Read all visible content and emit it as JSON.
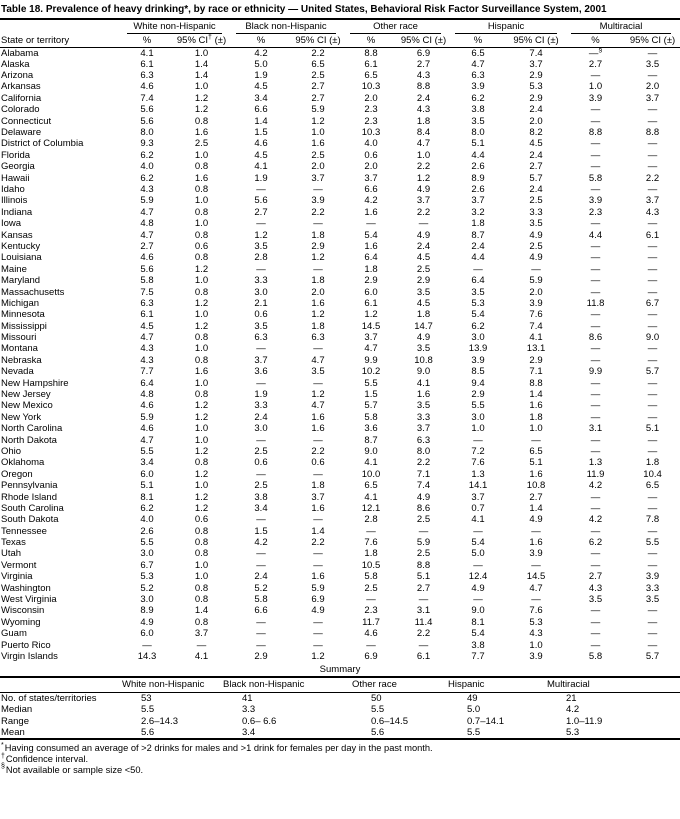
{
  "title": "Table 18. Prevalence of heavy drinking*, by race or ethnicity — United States, Behavioral Risk Factor Surveillance System, 2001",
  "table": {
    "state_col": "State or territory",
    "groups": [
      "White non-Hispanic",
      "Black non-Hispanic",
      "Other race",
      "Hispanic",
      "Multiracial"
    ],
    "pct_label": "%",
    "ci_label": "95% CI (±)",
    "ci_first": {
      "pre": "95% CI",
      "sup": "†",
      "post": " (±)"
    },
    "rows": [
      [
        "Alabama",
        "4.1",
        "1.0",
        "4.2",
        "2.2",
        "8.8",
        "6.9",
        "6.5",
        "7.4",
        "—§",
        "—"
      ],
      [
        "Alaska",
        "6.1",
        "1.4",
        "5.0",
        "6.5",
        "6.1",
        "2.7",
        "4.7",
        "3.7",
        "2.7",
        "3.5"
      ],
      [
        "Arizona",
        "6.3",
        "1.4",
        "1.9",
        "2.5",
        "6.5",
        "4.3",
        "6.3",
        "2.9",
        "—",
        "—"
      ],
      [
        "Arkansas",
        "4.6",
        "1.0",
        "4.5",
        "2.7",
        "10.3",
        "8.8",
        "3.9",
        "5.3",
        "1.0",
        "2.0"
      ],
      [
        "California",
        "7.4",
        "1.2",
        "3.4",
        "2.7",
        "2.0",
        "2.4",
        "6.2",
        "2.9",
        "3.9",
        "3.7"
      ],
      [
        "Colorado",
        "5.6",
        "1.2",
        "6.6",
        "5.9",
        "2.3",
        "4.3",
        "3.8",
        "2.4",
        "—",
        "—"
      ],
      [
        "Connecticut",
        "5.6",
        "0.8",
        "1.4",
        "1.2",
        "2.3",
        "1.8",
        "3.5",
        "2.0",
        "—",
        "—"
      ],
      [
        "Delaware",
        "8.0",
        "1.6",
        "1.5",
        "1.0",
        "10.3",
        "8.4",
        "8.0",
        "8.2",
        "8.8",
        "8.8"
      ],
      [
        "District of Columbia",
        "9.3",
        "2.5",
        "4.6",
        "1.6",
        "4.0",
        "4.7",
        "5.1",
        "4.5",
        "—",
        "—"
      ],
      [
        "Florida",
        "6.2",
        "1.0",
        "4.5",
        "2.5",
        "0.6",
        "1.0",
        "4.4",
        "2.4",
        "—",
        "—"
      ],
      [
        "Georgia",
        "4.0",
        "0.8",
        "4.1",
        "2.0",
        "2.0",
        "2.2",
        "2.6",
        "2.7",
        "—",
        "—"
      ],
      [
        "Hawaii",
        "6.2",
        "1.6",
        "1.9",
        "3.7",
        "3.7",
        "1.2",
        "8.9",
        "5.7",
        "5.8",
        "2.2"
      ],
      [
        "Idaho",
        "4.3",
        "0.8",
        "—",
        "—",
        "6.6",
        "4.9",
        "2.6",
        "2.4",
        "—",
        "—"
      ],
      [
        "Illinois",
        "5.9",
        "1.0",
        "5.6",
        "3.9",
        "4.2",
        "3.7",
        "3.7",
        "2.5",
        "3.9",
        "3.7"
      ],
      [
        "Indiana",
        "4.7",
        "0.8",
        "2.7",
        "2.2",
        "1.6",
        "2.2",
        "3.2",
        "3.3",
        "2.3",
        "4.3"
      ],
      [
        "Iowa",
        "4.8",
        "1.0",
        "—",
        "—",
        "—",
        "—",
        "1.8",
        "3.5",
        "—",
        "—"
      ],
      [
        "Kansas",
        "4.7",
        "0.8",
        "1.2",
        "1.8",
        "5.4",
        "4.9",
        "8.7",
        "4.9",
        "4.4",
        "6.1"
      ],
      [
        "Kentucky",
        "2.7",
        "0.6",
        "3.5",
        "2.9",
        "1.6",
        "2.4",
        "2.4",
        "2.5",
        "—",
        "—"
      ],
      [
        "Louisiana",
        "4.6",
        "0.8",
        "2.8",
        "1.2",
        "6.4",
        "4.5",
        "4.4",
        "4.9",
        "—",
        "—"
      ],
      [
        "Maine",
        "5.6",
        "1.2",
        "—",
        "—",
        "1.8",
        "2.5",
        "—",
        "—",
        "—",
        "—"
      ],
      [
        "Maryland",
        "5.8",
        "1.0",
        "3.3",
        "1.8",
        "2.9",
        "2.9",
        "6.4",
        "5.9",
        "—",
        "—"
      ],
      [
        "Massachusetts",
        "7.5",
        "0.8",
        "3.0",
        "2.0",
        "6.0",
        "3.5",
        "3.5",
        "2.0",
        "—",
        "—"
      ],
      [
        "Michigan",
        "6.3",
        "1.2",
        "2.1",
        "1.6",
        "6.1",
        "4.5",
        "5.3",
        "3.9",
        "11.8",
        "6.7"
      ],
      [
        "Minnesota",
        "6.1",
        "1.0",
        "0.6",
        "1.2",
        "1.2",
        "1.8",
        "5.4",
        "7.6",
        "—",
        "—"
      ],
      [
        "Mississippi",
        "4.5",
        "1.2",
        "3.5",
        "1.8",
        "14.5",
        "14.7",
        "6.2",
        "7.4",
        "—",
        "—"
      ],
      [
        "Missouri",
        "4.7",
        "0.8",
        "6.3",
        "6.3",
        "3.7",
        "4.9",
        "3.0",
        "4.1",
        "8.6",
        "9.0"
      ],
      [
        "Montana",
        "4.3",
        "1.0",
        "—",
        "—",
        "4.7",
        "3.5",
        "13.9",
        "13.1",
        "—",
        "—"
      ],
      [
        "Nebraska",
        "4.3",
        "0.8",
        "3.7",
        "4.7",
        "9.9",
        "10.8",
        "3.9",
        "2.9",
        "—",
        "—"
      ],
      [
        "Nevada",
        "7.7",
        "1.6",
        "3.6",
        "3.5",
        "10.2",
        "9.0",
        "8.5",
        "7.1",
        "9.9",
        "5.7"
      ],
      [
        "New Hampshire",
        "6.4",
        "1.0",
        "—",
        "—",
        "5.5",
        "4.1",
        "9.4",
        "8.8",
        "—",
        "—"
      ],
      [
        "New Jersey",
        "4.8",
        "0.8",
        "1.9",
        "1.2",
        "1.5",
        "1.6",
        "2.9",
        "1.4",
        "—",
        "—"
      ],
      [
        "New Mexico",
        "4.6",
        "1.2",
        "3.3",
        "4.7",
        "5.7",
        "3.5",
        "5.5",
        "1.6",
        "—",
        "—"
      ],
      [
        "New York",
        "5.9",
        "1.2",
        "2.4",
        "1.6",
        "5.8",
        "3.3",
        "3.0",
        "1.8",
        "—",
        "—"
      ],
      [
        "North Carolina",
        "4.6",
        "1.0",
        "3.0",
        "1.6",
        "3.6",
        "3.7",
        "1.0",
        "1.0",
        "3.1",
        "5.1"
      ],
      [
        "North Dakota",
        "4.7",
        "1.0",
        "—",
        "—",
        "8.7",
        "6.3",
        "—",
        "—",
        "—",
        "—"
      ],
      [
        "Ohio",
        "5.5",
        "1.2",
        "2.5",
        "2.2",
        "9.0",
        "8.0",
        "7.2",
        "6.5",
        "—",
        "—"
      ],
      [
        "Oklahoma",
        "3.4",
        "0.8",
        "0.6",
        "0.6",
        "4.1",
        "2.2",
        "7.6",
        "5.1",
        "1.3",
        "1.8"
      ],
      [
        "Oregon",
        "6.0",
        "1.2",
        "—",
        "—",
        "10.0",
        "7.1",
        "1.3",
        "1.6",
        "11.9",
        "10.4"
      ],
      [
        "Pennsylvania",
        "5.1",
        "1.0",
        "2.5",
        "1.8",
        "6.5",
        "7.4",
        "14.1",
        "10.8",
        "4.2",
        "6.5"
      ],
      [
        "Rhode Island",
        "8.1",
        "1.2",
        "3.8",
        "3.7",
        "4.1",
        "4.9",
        "3.7",
        "2.7",
        "—",
        "—"
      ],
      [
        "South Carolina",
        "6.2",
        "1.2",
        "3.4",
        "1.6",
        "12.1",
        "8.6",
        "0.7",
        "1.4",
        "—",
        "—"
      ],
      [
        "South Dakota",
        "4.0",
        "0.6",
        "—",
        "—",
        "2.8",
        "2.5",
        "4.1",
        "4.9",
        "4.2",
        "7.8"
      ],
      [
        "Tennessee",
        "2.6",
        "0.8",
        "1.5",
        "1.4",
        "—",
        "—",
        "—",
        "—",
        "—",
        "—"
      ],
      [
        "Texas",
        "5.5",
        "0.8",
        "4.2",
        "2.2",
        "7.6",
        "5.9",
        "5.4",
        "1.6",
        "6.2",
        "5.5"
      ],
      [
        "Utah",
        "3.0",
        "0.8",
        "—",
        "—",
        "1.8",
        "2.5",
        "5.0",
        "3.9",
        "—",
        "—"
      ],
      [
        "Vermont",
        "6.7",
        "1.0",
        "—",
        "—",
        "10.5",
        "8.8",
        "—",
        "—",
        "—",
        "—"
      ],
      [
        "Virginia",
        "5.3",
        "1.0",
        "2.4",
        "1.6",
        "5.8",
        "5.1",
        "12.4",
        "14.5",
        "2.7",
        "3.9"
      ],
      [
        "Washington",
        "5.2",
        "0.8",
        "5.2",
        "5.9",
        "2.5",
        "2.7",
        "4.9",
        "4.7",
        "4.3",
        "3.3"
      ],
      [
        "West Virginia",
        "3.0",
        "0.8",
        "5.8",
        "6.9",
        "—",
        "—",
        "—",
        "—",
        "3.5",
        "3.5"
      ],
      [
        "Wisconsin",
        "8.9",
        "1.4",
        "6.6",
        "4.9",
        "2.3",
        "3.1",
        "9.0",
        "7.6",
        "—",
        "—"
      ],
      [
        "Wyoming",
        "4.9",
        "0.8",
        "—",
        "—",
        "11.7",
        "11.4",
        "8.1",
        "5.3",
        "—",
        "—"
      ],
      [
        "Guam",
        "6.0",
        "3.7",
        "—",
        "—",
        "4.6",
        "2.2",
        "5.4",
        "4.3",
        "—",
        "—"
      ],
      [
        "Puerto Rico",
        "—",
        "—",
        "—",
        "—",
        "—",
        "—",
        "3.8",
        "1.0",
        "—",
        "—"
      ],
      [
        "Virgin Islands",
        "14.3",
        "4.1",
        "2.9",
        "1.2",
        "6.9",
        "6.1",
        "7.7",
        "3.9",
        "5.8",
        "5.7"
      ]
    ]
  },
  "summary": {
    "title": "Summary",
    "col_headers": [
      "White non-Hispanic",
      "Black non-Hispanic",
      "Other race",
      "Hispanic",
      "Multiracial"
    ],
    "rows": [
      [
        "No. of states/territories",
        "53",
        "41",
        "50",
        "49",
        "21"
      ],
      [
        "Median",
        "5.5",
        "3.3",
        "5.5",
        "5.0",
        "4.2"
      ],
      [
        "Range",
        "2.6–14.3",
        "0.6– 6.6",
        "0.6–14.5",
        "0.7–14.1",
        "1.0–11.9"
      ],
      [
        "Mean",
        "5.6",
        "3.4",
        "5.6",
        "5.5",
        "5.3"
      ]
    ]
  },
  "footnotes": [
    {
      "marker": "*",
      "text": "Having consumed an average of >2 drinks for males and >1 drink for females per day in the past month."
    },
    {
      "marker": "†",
      "text": "Confidence interval."
    },
    {
      "marker": "§",
      "text": "Not available or sample size <50."
    }
  ]
}
